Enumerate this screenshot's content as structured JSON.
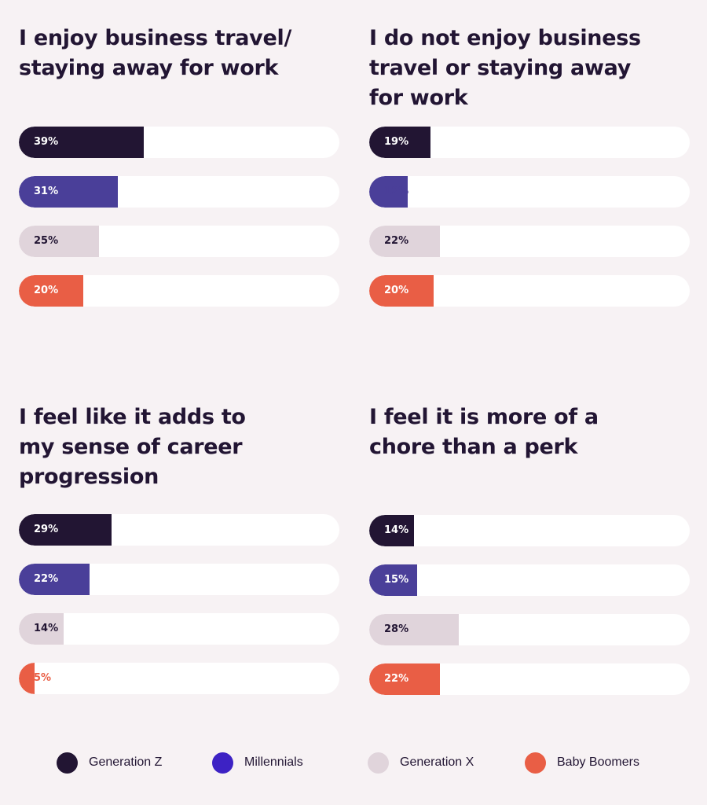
{
  "colors": {
    "gen_z": "#221533",
    "millennials": "#4a3f99",
    "gen_x": "#e0d4db",
    "boomers": "#e95e45",
    "track": "#ffffff",
    "background": "#f7f2f4"
  },
  "legend": [
    {
      "label": "Generation Z",
      "color": "#221533"
    },
    {
      "label": "Millennials",
      "color": "#3d22c4"
    },
    {
      "label": "Generation X",
      "color": "#e0d4db"
    },
    {
      "label": "Baby Boomers",
      "color": "#e95e45"
    }
  ],
  "chart_data": [
    {
      "type": "bar",
      "orientation": "horizontal",
      "title": "I enjoy business travel/ staying away for work",
      "categories": [
        "Generation Z",
        "Millennials",
        "Generation X",
        "Baby Boomers"
      ],
      "values": [
        39,
        31,
        25,
        20
      ],
      "labels": [
        "39%",
        "31%",
        "25%",
        "20%"
      ],
      "xlim": [
        0,
        100
      ]
    },
    {
      "type": "bar",
      "orientation": "horizontal",
      "title": "I do not enjoy business travel or staying away for work",
      "categories": [
        "Generation Z",
        "Millennials",
        "Generation X",
        "Baby Boomers"
      ],
      "values": [
        19,
        12,
        22,
        20
      ],
      "labels": [
        "19%",
        "12%",
        "22%",
        "20%"
      ],
      "xlim": [
        0,
        100
      ]
    },
    {
      "type": "bar",
      "orientation": "horizontal",
      "title": "I feel like it adds to my sense of career progression",
      "categories": [
        "Generation Z",
        "Millennials",
        "Generation X",
        "Baby Boomers"
      ],
      "values": [
        29,
        22,
        14,
        5
      ],
      "labels": [
        "29%",
        "22%",
        "14%",
        "5%"
      ],
      "xlim": [
        0,
        100
      ]
    },
    {
      "type": "bar",
      "orientation": "horizontal",
      "title": "I feel it is more of a chore than a perk",
      "categories": [
        "Generation Z",
        "Millennials",
        "Generation X",
        "Baby Boomers"
      ],
      "values": [
        14,
        15,
        28,
        22
      ],
      "labels": [
        "14%",
        "15%",
        "28%",
        "22%"
      ],
      "xlim": [
        0,
        100
      ]
    }
  ],
  "panels": [
    {
      "title_lines": [
        "I enjoy business travel/",
        "staying away for work"
      ]
    },
    {
      "title_lines": [
        "I do not enjoy business",
        "travel or staying away",
        "for work"
      ]
    },
    {
      "title_lines": [
        "I feel like it adds to",
        "my sense of career",
        "progression"
      ]
    },
    {
      "title_lines": [
        "I feel it is more of a",
        "chore than a perk"
      ]
    }
  ]
}
